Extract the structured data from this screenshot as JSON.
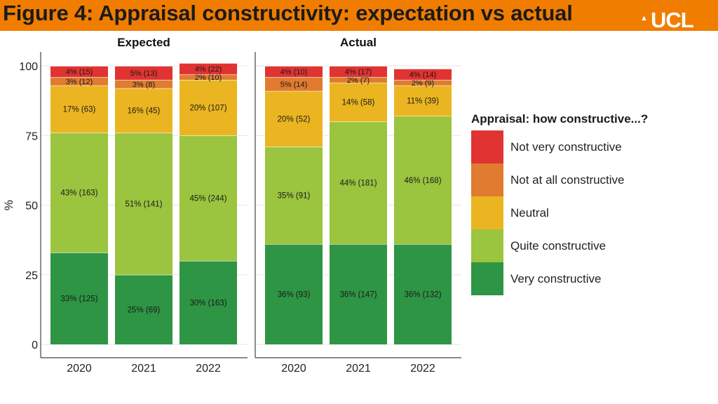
{
  "header": {
    "title": "Figure 4: Appraisal constructivity: expectation vs actual",
    "logo": "UCL",
    "logo_icon": "dome-icon"
  },
  "chart_data": {
    "type": "bar",
    "stacked": true,
    "ylabel": "%",
    "ylim": [
      0,
      100
    ],
    "yticks": [
      "0",
      "25",
      "50",
      "75",
      "100"
    ],
    "categories": [
      "Very constructive",
      "Quite constructive",
      "Neutral",
      "Not at all constructive",
      "Not very constructive"
    ],
    "colors": [
      "#2e9544",
      "#9bc43f",
      "#ebb521",
      "#e07b2f",
      "#e03332"
    ],
    "legend": {
      "title": "Appraisal: how constructive...?",
      "entries": [
        "Not very constructive",
        "Not at all constructive",
        "Neutral",
        "Quite constructive",
        "Very constructive"
      ],
      "colors": [
        "#e03332",
        "#e07b2f",
        "#ebb521",
        "#9bc43f",
        "#2e9544"
      ]
    },
    "panels": [
      {
        "title": "Expected",
        "years": [
          "2020",
          "2021",
          "2022"
        ],
        "bars": [
          {
            "values": [
              33,
              43,
              17,
              3,
              4
            ],
            "labels": [
              "33% (125)",
              "43% (163)",
              "17% (63)",
              "3% (12)",
              "4% (15)"
            ]
          },
          {
            "values": [
              25,
              51,
              16,
              3,
              5
            ],
            "labels": [
              "25% (69)",
              "51% (141)",
              "16% (45)",
              "3% (8)",
              "5% (13)"
            ]
          },
          {
            "values": [
              30,
              45,
              20,
              2,
              4
            ],
            "labels": [
              "30% (163)",
              "45% (244)",
              "20% (107)",
              "2% (10)",
              "4% (22)"
            ]
          }
        ]
      },
      {
        "title": "Actual",
        "years": [
          "2020",
          "2021",
          "2022"
        ],
        "bars": [
          {
            "values": [
              36,
              35,
              20,
              5,
              4
            ],
            "labels": [
              "36% (93)",
              "35% (91)",
              "20% (52)",
              "5% (14)",
              "4% (10)"
            ]
          },
          {
            "values": [
              36,
              44,
              14,
              2,
              4
            ],
            "labels": [
              "36% (147)",
              "44% (181)",
              "14% (58)",
              "2% (7)",
              "4% (17)"
            ]
          },
          {
            "values": [
              36,
              46,
              11,
              2,
              4
            ],
            "labels": [
              "36% (132)",
              "46% (168)",
              "11% (39)",
              "2% (9)",
              "4% (14)"
            ]
          }
        ]
      }
    ]
  }
}
